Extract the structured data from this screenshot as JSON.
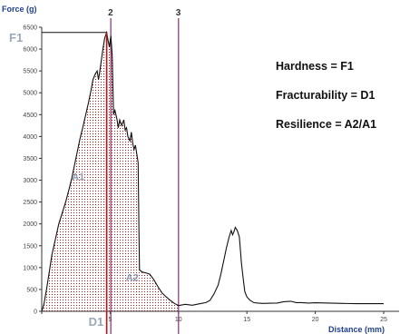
{
  "chart_data": {
    "type": "line",
    "ylabel": "Force (g)",
    "xlabel": "Distance (mm)",
    "xlim": [
      0,
      25
    ],
    "ylim": [
      0,
      6500
    ],
    "y_ticks": [
      0,
      500,
      1000,
      1500,
      2000,
      2500,
      3000,
      3500,
      4000,
      4500,
      5000,
      5500,
      6000,
      6500
    ],
    "x_ticks": [
      0,
      5,
      10,
      15,
      20,
      25
    ],
    "x_tick_labels": [
      "0",
      "5",
      "10",
      "15",
      "20",
      "25"
    ],
    "series": [
      {
        "x": [
          0,
          0.15,
          0.35,
          0.55,
          0.75,
          1.0,
          1.25,
          1.5,
          1.75,
          2.0,
          2.2,
          2.4,
          2.6,
          2.8,
          3.0,
          3.2,
          3.4,
          3.6,
          3.75,
          3.9,
          4.05,
          4.15,
          4.3,
          4.45,
          4.6,
          4.75,
          4.85,
          4.95,
          5.05,
          5.15,
          5.25,
          5.35,
          5.5,
          5.6,
          5.7,
          5.85,
          6.0,
          6.1,
          6.2,
          6.3,
          6.45,
          6.55,
          6.65,
          6.75,
          6.85,
          6.95,
          7.05,
          7.1,
          7.15,
          7.35,
          7.6,
          7.9,
          8.2,
          8.5,
          8.8,
          9.1,
          9.4,
          9.7,
          10.0,
          10.5,
          11.0,
          11.5,
          12.0,
          12.3,
          12.6,
          12.9,
          13.1,
          13.3,
          13.5,
          13.7,
          13.85,
          13.95,
          14.05,
          14.15,
          14.3,
          14.45,
          14.6,
          14.75,
          14.85,
          15.0,
          15.2,
          15.5,
          15.8,
          16.2,
          16.7,
          17.2,
          17.7,
          18.2,
          18.6,
          19.0,
          19.5,
          20.0,
          21.0,
          22.0,
          23.0,
          24.0,
          25.0
        ],
        "y": [
          0,
          150,
          500,
          900,
          1300,
          1650,
          2000,
          2250,
          2500,
          2800,
          3050,
          3350,
          3650,
          3950,
          4200,
          4480,
          4750,
          5050,
          5300,
          5420,
          5500,
          5300,
          5600,
          5950,
          6250,
          6380,
          6200,
          6050,
          6300,
          5850,
          4500,
          4600,
          4400,
          4200,
          4380,
          4250,
          4380,
          4150,
          4200,
          4000,
          3900,
          4100,
          3850,
          3700,
          3800,
          3600,
          3400,
          2000,
          950,
          900,
          880,
          850,
          720,
          560,
          420,
          330,
          250,
          180,
          130,
          160,
          140,
          170,
          200,
          250,
          400,
          600,
          850,
          1150,
          1450,
          1700,
          1850,
          1750,
          1820,
          1920,
          1850,
          1700,
          1100,
          700,
          450,
          330,
          260,
          200,
          190,
          180,
          185,
          190,
          220,
          230,
          200,
          200,
          190,
          195,
          190,
          180,
          175,
          175,
          175
        ]
      }
    ],
    "peak": {
      "label": "F1",
      "x": 4.75,
      "y": 6380
    },
    "markers": [
      {
        "label": "2",
        "x": 5.05
      },
      {
        "label": "3",
        "x": 10.0
      }
    ],
    "regions": [
      {
        "label": "A1",
        "x_start": 0,
        "x_end": 4.75
      },
      {
        "label": "A2",
        "x_start": 4.75,
        "x_end": 10.0
      }
    ],
    "distance_label": {
      "label": "D1",
      "x": 4.75
    },
    "annotations": [
      "Hardness  = F1",
      "Fracturability = D1",
      "Resilience  = A2/A1"
    ],
    "grid": false
  }
}
